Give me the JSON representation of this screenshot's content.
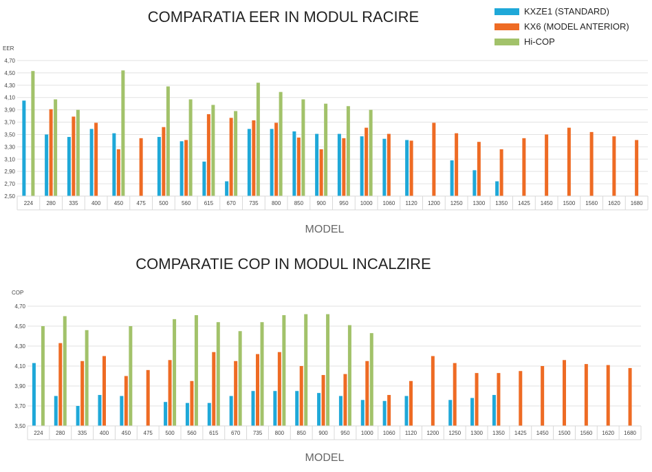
{
  "colors": {
    "kxze1": "#1fa8d8",
    "kx6": "#ee6b24",
    "hicop": "#a2c26a"
  },
  "legend": [
    {
      "name": "KXZE1 (STANDARD)",
      "color": "#1fa8d8"
    },
    {
      "name": "KX6 (MODEL ANTERIOR)",
      "color": "#ee6b24"
    },
    {
      "name": "Hi-COP",
      "color": "#a2c26a"
    }
  ],
  "chart_data": [
    {
      "type": "bar",
      "title": "COMPARATIA EER IN MODUL RACIRE",
      "xlabel": "MODEL",
      "ylabel": "EER",
      "ylim": [
        2.5,
        4.7
      ],
      "yticks": [
        "2,50",
        "2,70",
        "2,90",
        "3,10",
        "3,30",
        "3,50",
        "3,70",
        "3,90",
        "4,10",
        "4,30",
        "4,50",
        "4,70"
      ],
      "categories": [
        "224",
        "280",
        "335",
        "400",
        "450",
        "475",
        "500",
        "560",
        "615",
        "670",
        "735",
        "800",
        "850",
        "900",
        "950",
        "1000",
        "1060",
        "1120",
        "1200",
        "1250",
        "1300",
        "1350",
        "1425",
        "1450",
        "1500",
        "1560",
        "1620",
        "1680"
      ],
      "series": [
        {
          "name": "KXZE1 (STANDARD)",
          "values": [
            4.05,
            3.5,
            3.46,
            3.59,
            3.52,
            null,
            3.46,
            3.39,
            3.06,
            2.74,
            3.59,
            3.59,
            3.55,
            3.51,
            3.51,
            3.47,
            3.43,
            3.41,
            null,
            3.08,
            2.92,
            2.74,
            null,
            null,
            null,
            null,
            null,
            null
          ]
        },
        {
          "name": "KX6 (MODEL ANTERIOR)",
          "values": [
            null,
            3.91,
            3.79,
            3.69,
            3.26,
            3.44,
            3.62,
            3.41,
            3.83,
            3.77,
            3.73,
            3.69,
            3.45,
            3.26,
            3.44,
            3.61,
            3.51,
            3.4,
            3.69,
            3.52,
            3.38,
            3.26,
            3.44,
            3.5,
            3.61,
            3.54,
            3.47,
            3.41
          ]
        },
        {
          "name": "Hi-COP",
          "values": [
            4.53,
            4.07,
            3.9,
            null,
            4.54,
            null,
            4.28,
            4.07,
            3.98,
            3.88,
            4.34,
            4.19,
            4.07,
            4.0,
            3.96,
            3.9,
            null,
            null,
            null,
            null,
            null,
            null,
            null,
            null,
            null,
            null,
            null,
            null
          ]
        }
      ]
    },
    {
      "type": "bar",
      "title": "COMPARATIE COP IN MODUL INCALZIRE",
      "xlabel": "MODEL",
      "ylabel": "COP",
      "ylim": [
        3.5,
        4.7
      ],
      "yticks": [
        "3,50",
        "3,70",
        "3,90",
        "4,10",
        "4,30",
        "4,50",
        "4,70"
      ],
      "categories": [
        "224",
        "280",
        "335",
        "400",
        "450",
        "475",
        "500",
        "560",
        "615",
        "670",
        "735",
        "800",
        "850",
        "900",
        "950",
        "1000",
        "1060",
        "1120",
        "1200",
        "1250",
        "1300",
        "1350",
        "1425",
        "1450",
        "1500",
        "1560",
        "1620",
        "1680"
      ],
      "series": [
        {
          "name": "KXZE1 (STANDARD)",
          "values": [
            4.13,
            3.8,
            3.7,
            3.81,
            3.8,
            null,
            3.74,
            3.73,
            3.73,
            3.8,
            3.85,
            3.85,
            3.85,
            3.83,
            3.8,
            3.76,
            3.75,
            3.8,
            null,
            3.76,
            3.78,
            3.81,
            null,
            null,
            null,
            null,
            null,
            null
          ]
        },
        {
          "name": "KX6 (MODEL ANTERIOR)",
          "values": [
            null,
            4.33,
            4.15,
            4.2,
            4.0,
            4.06,
            4.16,
            3.95,
            4.24,
            4.15,
            4.22,
            4.24,
            4.1,
            4.01,
            4.02,
            4.15,
            3.81,
            3.95,
            4.2,
            4.13,
            4.03,
            4.03,
            4.05,
            4.1,
            4.16,
            4.12,
            4.11,
            4.08
          ]
        },
        {
          "name": "Hi-COP",
          "values": [
            4.5,
            4.6,
            4.46,
            null,
            4.5,
            null,
            4.57,
            4.61,
            4.54,
            4.45,
            4.54,
            4.61,
            4.62,
            4.62,
            4.51,
            4.43,
            null,
            null,
            null,
            null,
            null,
            null,
            null,
            null,
            null,
            null,
            null,
            null
          ]
        }
      ]
    }
  ]
}
